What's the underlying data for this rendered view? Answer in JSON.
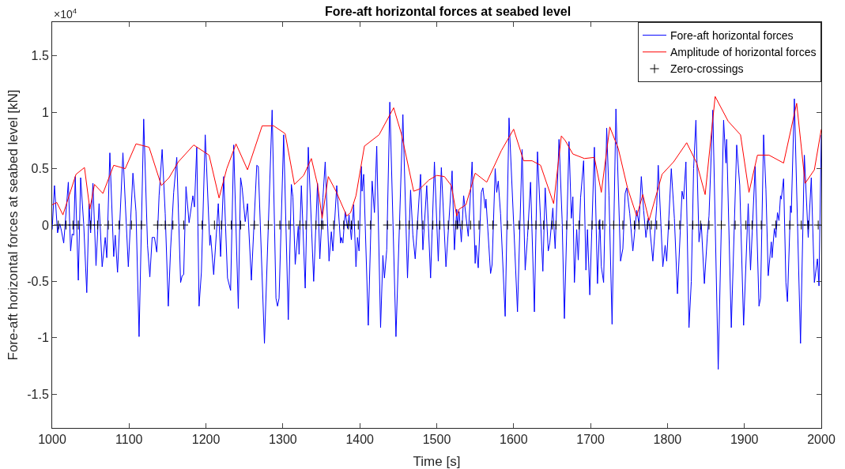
{
  "chart_data": {
    "type": "line",
    "title": "Fore-aft horizontal forces at seabed level",
    "xlabel": "Time [s]",
    "ylabel": "Fore-aft horizontal forces at seabed level [kN]",
    "annotations": [
      "×10$^{4}$"
    ],
    "xlim": [
      1000,
      2000
    ],
    "xticks": [
      1000,
      1100,
      1200,
      1300,
      1400,
      1500,
      1600,
      1700,
      1800,
      1900,
      2000
    ],
    "ylim": [
      -1.8,
      1.8
    ],
    "yticks": [
      -1.5,
      -1,
      -0.5,
      0,
      0.5,
      1,
      1.5
    ],
    "grid": false,
    "legend": "top right",
    "line_style": "solid",
    "series": [
      {
        "name": "Fore-aft horizontal forces",
        "color": "#0000ff",
        "x": [
          1000,
          1003,
          1007,
          1010,
          1012,
          1015,
          1021,
          1024,
          1026,
          1028,
          1030,
          1034,
          1037,
          1041,
          1045,
          1048,
          1050,
          1053,
          1057,
          1061,
          1065,
          1069,
          1071,
          1075,
          1080,
          1082,
          1085,
          1092,
          1099,
          1105,
          1109,
          1113,
          1119,
          1124,
          1127,
          1130,
          1133,
          1136,
          1139,
          1143,
          1147,
          1151,
          1154,
          1158,
          1162,
          1167,
          1169,
          1171,
          1174,
          1178,
          1183,
          1185,
          1188,
          1191,
          1194,
          1199,
          1205,
          1206,
          1210,
          1216,
          1219,
          1223,
          1228,
          1232,
          1236,
          1242,
          1245,
          1247,
          1251,
          1254,
          1259,
          1266,
          1268,
          1276,
          1286,
          1291,
          1293,
          1295,
          1301,
          1307,
          1311,
          1313,
          1316,
          1320,
          1321,
          1324,
          1329,
          1333,
          1340,
          1345,
          1348,
          1352,
          1355,
          1360,
          1363,
          1365,
          1370,
          1375,
          1376,
          1378,
          1381,
          1384,
          1386,
          1389,
          1392,
          1395,
          1397,
          1399,
          1402,
          1403,
          1405,
          1411,
          1416,
          1419,
          1422,
          1427,
          1430,
          1432,
          1435,
          1439,
          1447,
          1456,
          1462,
          1466,
          1469,
          1472,
          1479,
          1482,
          1487,
          1492,
          1497,
          1502,
          1506,
          1512,
          1516,
          1520,
          1523,
          1526,
          1527,
          1529,
          1532,
          1535,
          1541,
          1546,
          1550,
          1551,
          1554,
          1558,
          1560,
          1563,
          1564,
          1570,
          1572,
          1576,
          1578,
          1580,
          1583,
          1589,
          1594,
          1601,
          1605,
          1611,
          1615,
          1618,
          1622,
          1627,
          1631,
          1638,
          1641,
          1645,
          1647,
          1651,
          1654,
          1659,
          1663,
          1666,
          1672,
          1675,
          1677,
          1679,
          1682,
          1684,
          1687,
          1691,
          1694,
          1696,
          1699,
          1705,
          1709,
          1712,
          1714,
          1717,
          1721,
          1724,
          1728,
          1733,
          1739,
          1742,
          1745,
          1747,
          1751,
          1755,
          1760,
          1763,
          1766,
          1769,
          1772,
          1775,
          1777,
          1781,
          1786,
          1788,
          1794,
          1797,
          1799,
          1805,
          1809,
          1813,
          1819,
          1821,
          1824,
          1828,
          1831,
          1834,
          1837,
          1841,
          1844,
          1848,
          1852,
          1854,
          1859,
          1866,
          1873,
          1876,
          1877,
          1883,
          1890,
          1894,
          1899,
          1905,
          1908,
          1914,
          1919,
          1921,
          1925,
          1928,
          1931,
          1935,
          1936,
          1939,
          1941,
          1943,
          1945,
          1947,
          1948,
          1951,
          1954,
          1956,
          1960,
          1961,
          1965,
          1973,
          1978,
          1983,
          1987,
          1991,
          1995,
          1997,
          2000
        ],
        "values": [
          -0.04,
          0.35,
          -0.07,
          0.01,
          -0.05,
          -0.16,
          0.38,
          -0.23,
          -0.08,
          -0.09,
          0.43,
          -0.49,
          0.42,
          0.01,
          -0.6,
          0.19,
          -0.07,
          0.37,
          -0.36,
          0.19,
          -0.37,
          -0.11,
          -0.29,
          0.64,
          -0.28,
          -0.09,
          -0.42,
          0.64,
          -0.37,
          0.46,
          0.12,
          -0.99,
          0.94,
          -0.18,
          -0.46,
          -0.11,
          -0.11,
          -0.24,
          0.26,
          0.67,
          0.1,
          -0.72,
          -0.21,
          0.29,
          0.6,
          -0.51,
          -0.45,
          -0.44,
          0.34,
          0.02,
          0.26,
          0.16,
          0.69,
          -0.72,
          -0.42,
          0.8,
          -0.18,
          -0.09,
          -0.44,
          0.19,
          -0.28,
          0.43,
          -0.47,
          -0.58,
          0.71,
          -0.74,
          0.42,
          0.33,
          0.03,
          0.19,
          -0.49,
          0.53,
          0.52,
          -1.05,
          1.02,
          -0.65,
          -0.72,
          -0.65,
          0.8,
          -0.84,
          0.36,
          0.25,
          -0.35,
          -0.01,
          -0.26,
          0.35,
          -0.56,
          0.69,
          -0.5,
          0.37,
          -0.3,
          0.24,
          0.56,
          -0.32,
          -0.06,
          -0.23,
          0.35,
          -0.16,
          -0.11,
          -0.16,
          0.12,
          -0.03,
          0.09,
          -0.13,
          0.18,
          -0.37,
          -0.11,
          -0.23,
          0.52,
          0.3,
          0.45,
          -0.89,
          0.39,
          0.11,
          0.7,
          -0.91,
          -0.27,
          -0.47,
          -0.22,
          1.09,
          -0.99,
          0.98,
          -0.47,
          0.31,
          -0.09,
          -0.3,
          0.45,
          -0.22,
          0.35,
          -0.47,
          0.56,
          -0.32,
          0.51,
          -0.37,
          0.05,
          0.48,
          -0.22,
          0.14,
          -0.03,
          0.12,
          -0.15,
          0.26,
          -0.1,
          0.56,
          -0.34,
          -0.18,
          -0.38,
          0.29,
          0.33,
          0.15,
          0.23,
          -0.43,
          -0.35,
          0.5,
          0.29,
          0.39,
          0.1,
          -0.81,
          0.95,
          -0.14,
          -0.77,
          0.67,
          -0.4,
          -0.11,
          0.38,
          -0.77,
          0.65,
          -0.41,
          0.33,
          -0.23,
          -0.16,
          0.15,
          -0.21,
          0.76,
          0.05,
          -0.83,
          0.74,
          0.06,
          0.25,
          -0.51,
          -0.04,
          -0.31,
          0.24,
          0.57,
          -0.4,
          -0.04,
          -0.62,
          0.69,
          -0.52,
          0.05,
          -0.37,
          -0.51,
          0.86,
          0.26,
          -0.88,
          1.03,
          -0.32,
          -0.21,
          0.28,
          0.33,
          0.1,
          -0.23,
          0.13,
          0.01,
          0.43,
          0.13,
          -0.11,
          0.06,
          -0.02,
          -0.32,
          0.17,
          0.53,
          -0.37,
          -0.18,
          -0.32,
          0.5,
          0.06,
          -0.61,
          0.3,
          0.23,
          0.56,
          -0.91,
          -0.5,
          0.5,
          0.93,
          -0.15,
          0.01,
          -0.52,
          -0.08,
          0.08,
          1.02,
          -1.28,
          0.93,
          0.55,
          0.76,
          -0.91,
          0.71,
          0.35,
          -0.89,
          0.19,
          -0.4,
          0.52,
          -0.72,
          -0.65,
          0.8,
          0.32,
          -0.45,
          -0.15,
          -0.29,
          -0.03,
          -0.11,
          0.11,
          0.04,
          0.26,
          0.23,
          0.41,
          -0.51,
          -0.68,
          0.17,
          0.11,
          1.12,
          -1.05,
          0.62,
          -0.11,
          0.42,
          -0.51,
          -0.3,
          -0.54,
          0.8
        ]
      },
      {
        "name": "Amplitude of horizontal forces",
        "color": "#ff0000",
        "x": [
          1000,
          1006,
          1014,
          1031,
          1042,
          1049,
          1055,
          1066,
          1080,
          1095,
          1109,
          1126,
          1142,
          1152,
          1164,
          1184,
          1204,
          1217,
          1227,
          1239,
          1254,
          1273,
          1288,
          1303,
          1315,
          1327,
          1337,
          1345,
          1351,
          1359,
          1369,
          1383,
          1388,
          1395,
          1406,
          1425,
          1444,
          1454,
          1470,
          1478,
          1490,
          1500,
          1510,
          1519,
          1526,
          1529,
          1538,
          1550,
          1565,
          1584,
          1600,
          1613,
          1624,
          1635,
          1652,
          1662,
          1667,
          1677,
          1692,
          1705,
          1714,
          1725,
          1736,
          1748,
          1760,
          1768,
          1776,
          1793,
          1808,
          1825,
          1838,
          1849,
          1862,
          1879,
          1895,
          1906,
          1917,
          1932,
          1951,
          1968,
          1979,
          1991,
          2000
        ],
        "values": [
          0.18,
          0.2,
          0.09,
          0.45,
          0.51,
          0.14,
          0.36,
          0.28,
          0.53,
          0.5,
          0.72,
          0.69,
          0.35,
          0.42,
          0.56,
          0.71,
          0.62,
          0.24,
          0.5,
          0.72,
          0.49,
          0.88,
          0.88,
          0.81,
          0.36,
          0.44,
          0.59,
          0.36,
          0.06,
          0.43,
          0.3,
          0.08,
          0.11,
          0.26,
          0.7,
          0.8,
          1.04,
          0.81,
          0.3,
          0.32,
          0.4,
          0.44,
          0.43,
          0.35,
          0.08,
          0.14,
          0.18,
          0.46,
          0.38,
          0.66,
          0.85,
          0.57,
          0.57,
          0.53,
          0.19,
          0.79,
          0.75,
          0.63,
          0.59,
          0.6,
          0.29,
          0.87,
          0.68,
          0.33,
          0.08,
          0.27,
          0.04,
          0.45,
          0.56,
          0.73,
          0.55,
          0.27,
          1.14,
          0.92,
          0.8,
          0.29,
          0.62,
          0.62,
          0.55,
          1.08,
          0.37,
          0.49,
          0.85
        ]
      },
      {
        "name": "Zero-crossings",
        "type": "scatter",
        "marker": "cross",
        "color": "#000000",
        "x": [
          1008,
          1018,
          1027,
          1034,
          1050,
          1059,
          1073,
          1087,
          1103,
          1116,
          1137,
          1147,
          1157,
          1171,
          1195,
          1211,
          1220,
          1233,
          1245,
          1263,
          1281,
          1296,
          1308,
          1322,
          1330,
          1343,
          1350,
          1352,
          1366,
          1379,
          1385,
          1389,
          1398,
          1414,
          1436,
          1452,
          1464,
          1475,
          1482,
          1495,
          1504,
          1515,
          1525,
          1527,
          1533,
          1544,
          1555,
          1573,
          1592,
          1607,
          1619,
          1629,
          1639,
          1650,
          1655,
          1669,
          1685,
          1702,
          1711,
          1716,
          1730,
          1742,
          1757,
          1763,
          1774,
          1779,
          1786,
          1802,
          1816,
          1833,
          1843,
          1854,
          1870,
          1888,
          1902,
          1910,
          1922,
          1941,
          1959,
          1974,
          1983,
          1996
        ],
        "values": [
          0,
          0,
          0,
          0,
          0,
          0,
          0,
          0,
          0,
          0,
          0,
          0,
          0,
          0,
          0,
          0,
          0,
          0,
          0,
          0,
          0,
          0,
          0,
          0,
          0,
          0,
          0,
          0,
          0,
          0,
          0,
          0,
          0,
          0,
          0,
          0,
          0,
          0,
          0,
          0,
          0,
          0,
          0,
          0,
          0,
          0,
          0,
          0,
          0,
          0,
          0,
          0,
          0,
          0,
          0,
          0,
          0,
          0,
          0,
          0,
          0,
          0,
          0,
          0,
          0,
          0,
          0,
          0,
          0,
          0,
          0,
          0,
          0,
          0,
          0,
          0,
          0,
          0,
          0,
          0,
          0,
          0
        ]
      }
    ]
  }
}
